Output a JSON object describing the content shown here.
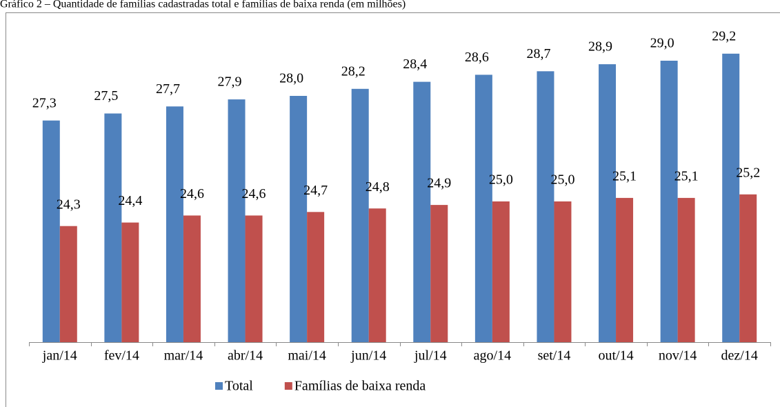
{
  "chart_data": {
    "type": "bar",
    "title": "Gráfico 2 – Quantidade de famílias cadastradas total e famílias de baixa renda (em milhões)",
    "categories": [
      "jan/14",
      "fev/14",
      "mar/14",
      "abr/14",
      "mai/14",
      "jun/14",
      "jul/14",
      "ago/14",
      "set/14",
      "out/14",
      "nov/14",
      "dez/14"
    ],
    "series": [
      {
        "name": "Total",
        "color": "#4f81bd",
        "values": [
          27.3,
          27.5,
          27.7,
          27.9,
          28.0,
          28.2,
          28.4,
          28.6,
          28.7,
          28.9,
          29.0,
          29.2
        ],
        "value_labels": [
          "27,3",
          "27,5",
          "27,7",
          "27,9",
          "28,0",
          "28,2",
          "28,4",
          "28,6",
          "28,7",
          "28,9",
          "29,0",
          "29,2"
        ]
      },
      {
        "name": "Famílias de baixa renda",
        "color": "#c0504d",
        "values": [
          24.3,
          24.4,
          24.6,
          24.6,
          24.7,
          24.8,
          24.9,
          25.0,
          25.0,
          25.1,
          25.1,
          25.2
        ],
        "value_labels": [
          "24,3",
          "24,4",
          "24,6",
          "24,6",
          "24,7",
          "24,8",
          "24,9",
          "25,0",
          "25,0",
          "25,1",
          "25,1",
          "25,2"
        ]
      }
    ],
    "ylim": [
      21,
      30
    ]
  }
}
